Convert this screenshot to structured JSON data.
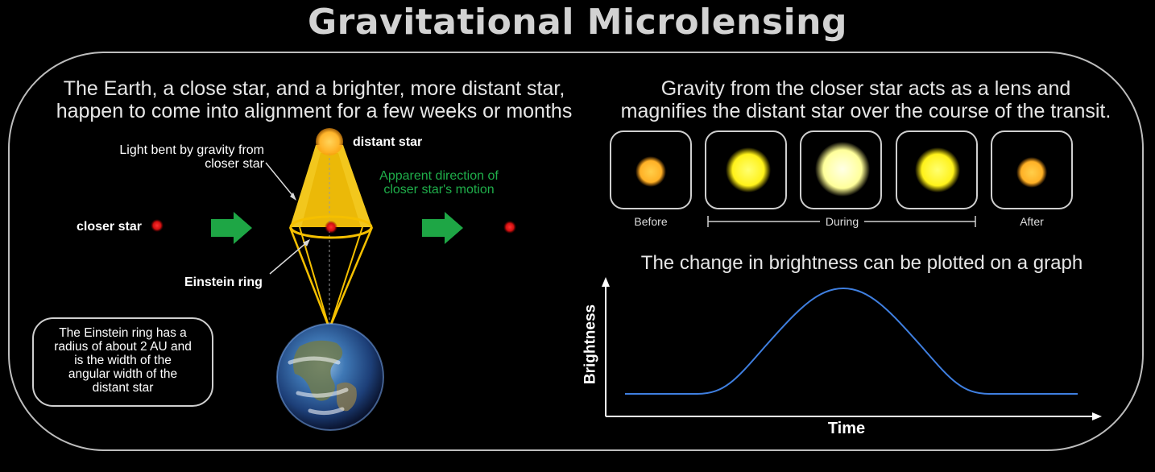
{
  "title": "Gravitational Microlensing",
  "left": {
    "caption_line1": "The Earth, a close star, and a brighter, more distant star,",
    "caption_line2": "happen to come into alignment for a few weeks or months",
    "distant_star_label": "distant star",
    "light_bent_line1": "Light bent by gravity from",
    "light_bent_line2": "closer star",
    "closer_star_label": "closer star",
    "motion_line1": "Apparent direction of",
    "motion_line2": "closer star's motion",
    "einstein_ring_label": "Einstein ring",
    "note_lines": [
      "The Einstein ring has a",
      "radius of about 2 AU and",
      "is the width of the",
      "angular width of the",
      "distant star"
    ]
  },
  "right": {
    "caption_line1": "Gravity from the closer star acts as a lens and",
    "caption_line2": "magnifies the distant star over the course of the transit.",
    "frame_labels": {
      "before": "Before",
      "during": "During",
      "after": "After"
    },
    "graph_title": "The change in brightness can be plotted on a graph",
    "ylabel": "Brightness",
    "xlabel": "Time"
  },
  "colors": {
    "light_cone": "#ffd21f",
    "ring": "#f5c000",
    "closer_star": "#e01515",
    "arrow": "#1ea645",
    "curve": "#3f7fe0",
    "frame": "#bdbdbd"
  }
}
